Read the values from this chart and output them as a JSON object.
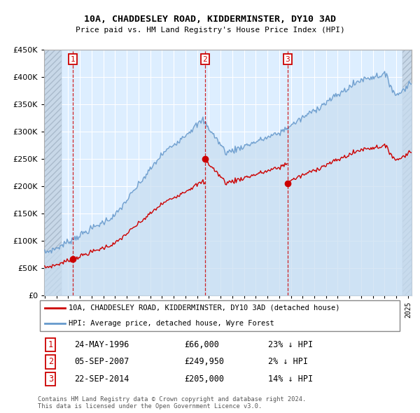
{
  "title": "10A, CHADDESLEY ROAD, KIDDERMINSTER, DY10 3AD",
  "subtitle": "Price paid vs. HM Land Registry's House Price Index (HPI)",
  "ylim": [
    0,
    450000
  ],
  "yticks": [
    0,
    50000,
    100000,
    150000,
    200000,
    250000,
    300000,
    350000,
    400000,
    450000
  ],
  "xlim_start": 1993.95,
  "xlim_end": 2025.3,
  "sale_color": "#cc0000",
  "hpi_color": "#6699cc",
  "transactions": [
    {
      "num": 1,
      "date_dec": 1996.39,
      "price": 66000,
      "date_str": "24-MAY-1996",
      "price_str": "£66,000",
      "hpi_pct": "23% ↓ HPI"
    },
    {
      "num": 2,
      "date_dec": 2007.68,
      "price": 249950,
      "date_str": "05-SEP-2007",
      "price_str": "£249,950",
      "hpi_pct": "2% ↓ HPI"
    },
    {
      "num": 3,
      "date_dec": 2014.72,
      "price": 205000,
      "date_str": "22-SEP-2014",
      "price_str": "£205,000",
      "hpi_pct": "14% ↓ HPI"
    }
  ],
  "legend_line1": "10A, CHADDESLEY ROAD, KIDDERMINSTER, DY10 3AD (detached house)",
  "legend_line2": "HPI: Average price, detached house, Wyre Forest",
  "footer": "Contains HM Land Registry data © Crown copyright and database right 2024.\nThis data is licensed under the Open Government Licence v3.0."
}
